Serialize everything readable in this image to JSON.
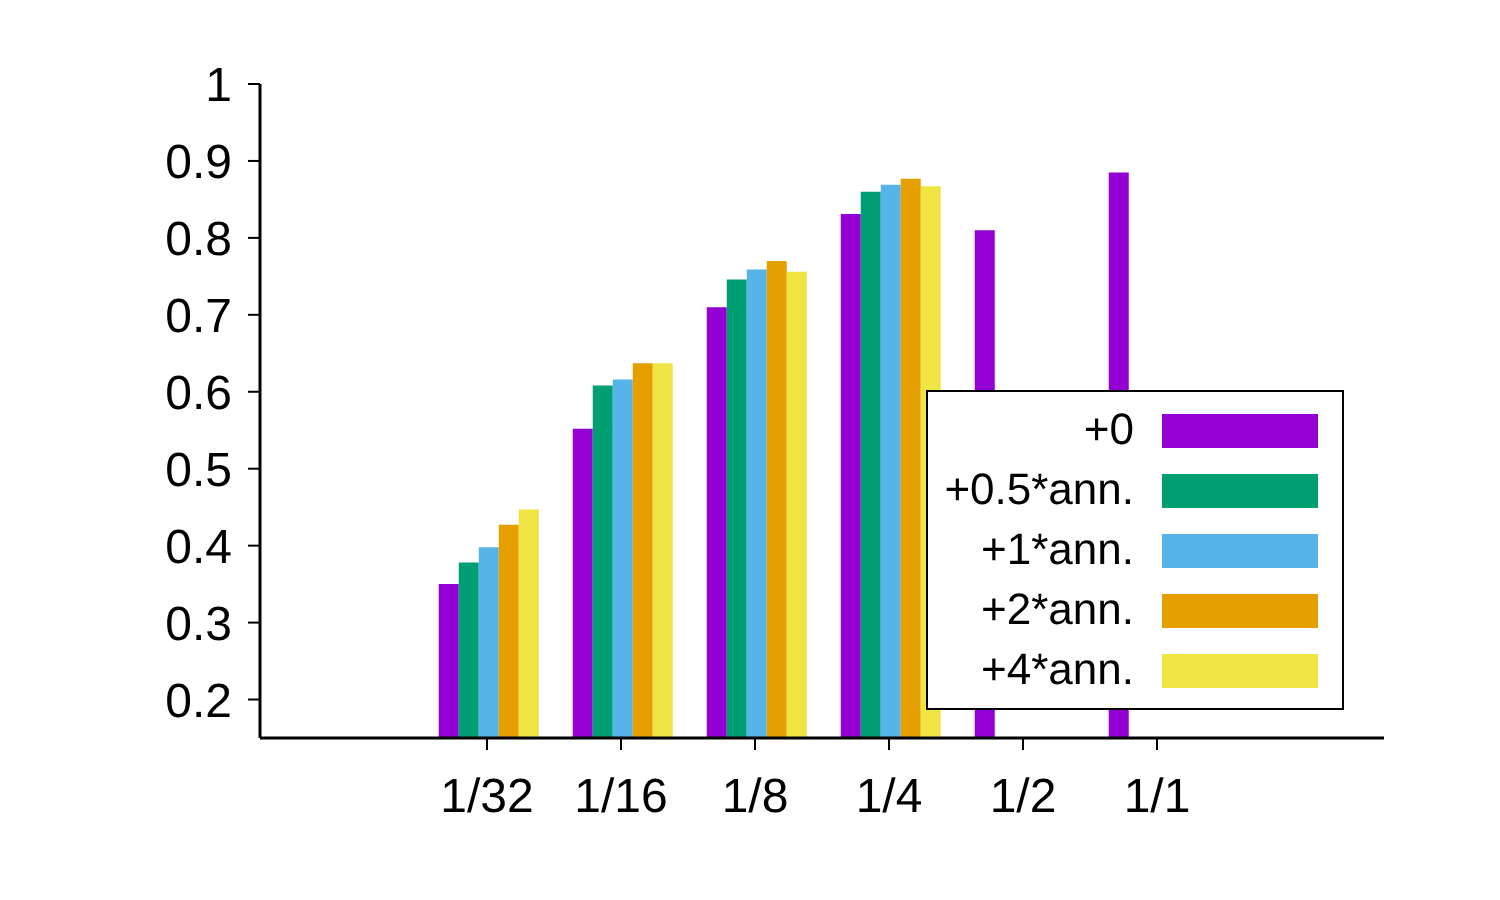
{
  "chart_data": {
    "type": "bar",
    "categories": [
      "1/32",
      "1/16",
      "1/8",
      "1/4",
      "1/2",
      "1/1"
    ],
    "series": [
      {
        "name": "+0",
        "color": "#9400d3",
        "values": [
          0.35,
          0.552,
          0.71,
          0.831,
          0.81,
          0.885
        ]
      },
      {
        "name": "+0.5*ann.",
        "color": "#009e73",
        "values": [
          0.378,
          0.608,
          0.746,
          0.86,
          null,
          null
        ]
      },
      {
        "name": "+1*ann.",
        "color": "#56b4e9",
        "values": [
          0.398,
          0.616,
          0.759,
          0.869,
          null,
          null
        ]
      },
      {
        "name": "+2*ann.",
        "color": "#e69f00",
        "values": [
          0.427,
          0.637,
          0.77,
          0.877,
          null,
          null
        ]
      },
      {
        "name": "+4*ann.",
        "color": "#f0e442",
        "values": [
          0.447,
          0.637,
          0.756,
          0.867,
          null,
          null
        ]
      }
    ],
    "ylim": [
      0.15,
      1
    ],
    "yticks": [
      0.2,
      0.3,
      0.4,
      0.5,
      0.6,
      0.7,
      0.8,
      0.9,
      1
    ],
    "legend": "bottom right"
  }
}
